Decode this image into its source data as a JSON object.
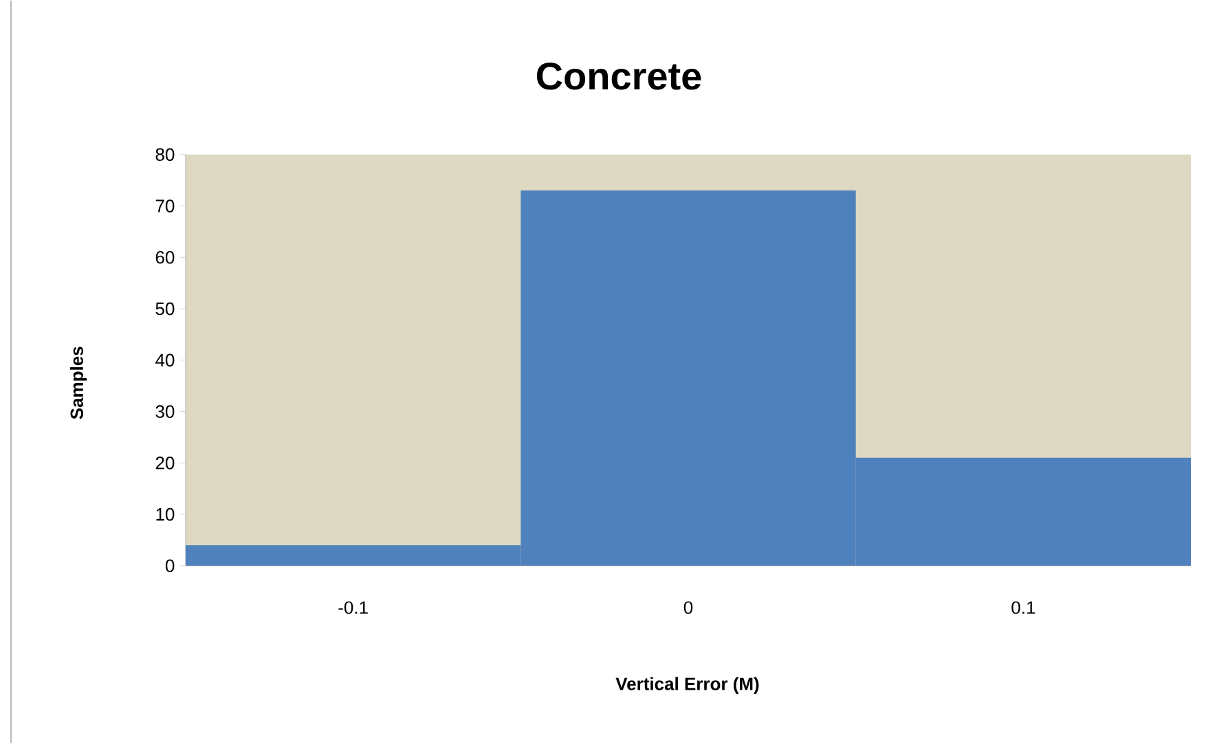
{
  "chart_data": {
    "type": "bar",
    "title": "Concrete",
    "xlabel": "Vertical Error (M)",
    "ylabel": "Samples",
    "categories": [
      "-0.1",
      "0",
      "0.1"
    ],
    "values": [
      4,
      73,
      21
    ],
    "color": "#4f81bd",
    "ylim": [
      0,
      80
    ],
    "yticks": [
      0,
      10,
      20,
      30,
      40,
      50,
      60,
      70,
      80
    ]
  }
}
